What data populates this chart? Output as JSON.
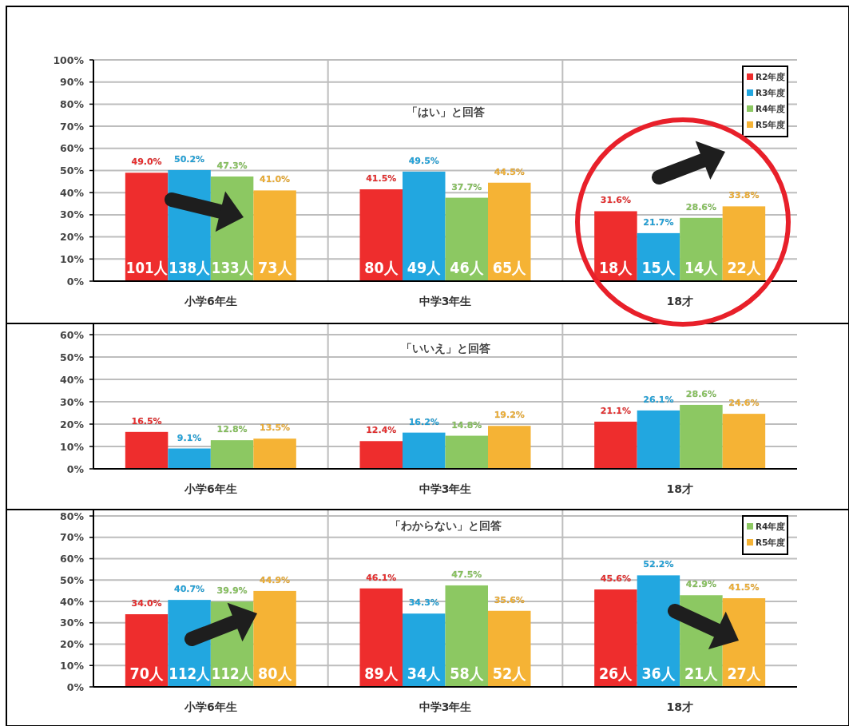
{
  "chart_data": [
    {
      "type": "bar",
      "title": "「はい」と回答",
      "categories": [
        "小学6年生",
        "中学3年生",
        "18才"
      ],
      "ylim": [
        0,
        100
      ],
      "yticks": [
        {
          "value": 0,
          "label": "0%"
        },
        {
          "value": 10,
          "label": "10%"
        },
        {
          "value": 20,
          "label": "20%"
        },
        {
          "value": 30,
          "label": "30%"
        },
        {
          "value": 40,
          "label": "40%"
        },
        {
          "value": 50,
          "label": "50%"
        },
        {
          "value": 60,
          "label": "60%"
        },
        {
          "value": 70,
          "label": "70%"
        },
        {
          "value": 80,
          "label": "80%"
        },
        {
          "value": 90,
          "label": "90%"
        },
        {
          "value": 100,
          "label": "100%"
        }
      ],
      "grid": true,
      "legend": "top right",
      "annotations": [
        "101人",
        "80人",
        "18人",
        "138人",
        "49人",
        "15人",
        "133人",
        "46人",
        "14人",
        "73人",
        "65人",
        "22人"
      ],
      "series": [
        {
          "name": "R2年度",
          "color": "#ee2d2d",
          "values": [
            49.0,
            41.5,
            31.6
          ],
          "value_labels": [
            "49.0%",
            "41.5%",
            "31.6%"
          ]
        },
        {
          "name": "R3年度",
          "color": "#22a7e0",
          "values": [
            50.2,
            49.5,
            21.7
          ],
          "value_labels": [
            "50.2%",
            "49.5%",
            "21.7%"
          ]
        },
        {
          "name": "R4年度",
          "color": "#8cc862",
          "values": [
            47.3,
            37.7,
            28.6
          ],
          "value_labels": [
            "47.3%",
            "37.7%",
            "28.6%"
          ]
        },
        {
          "name": "R5年度",
          "color": "#f5b335",
          "values": [
            41.0,
            44.5,
            33.8
          ],
          "value_labels": [
            "41.0%",
            "44.5%",
            "33.8%"
          ]
        }
      ]
    },
    {
      "type": "bar",
      "title": "「いいえ」と回答",
      "categories": [
        "小学6年生",
        "中学3年生",
        "18才"
      ],
      "ylim": [
        0,
        65
      ],
      "yticks": [
        {
          "value": 0,
          "label": "0%"
        },
        {
          "value": 10,
          "label": "10%"
        },
        {
          "value": 20,
          "label": "20%"
        },
        {
          "value": 30,
          "label": "30%"
        },
        {
          "value": 40,
          "label": "40%"
        },
        {
          "value": 50,
          "label": "50%"
        },
        {
          "value": 60,
          "label": "60%"
        }
      ],
      "grid": true,
      "series": [
        {
          "color": "#ee2d2d",
          "values": [
            16.5,
            12.4,
            21.1
          ],
          "value_labels": [
            "16.5%",
            "12.4%",
            "21.1%"
          ]
        },
        {
          "color": "#22a7e0",
          "values": [
            9.1,
            16.2,
            26.1
          ],
          "value_labels": [
            "9.1%",
            "16.2%",
            "26.1%"
          ]
        },
        {
          "color": "#8cc862",
          "values": [
            12.8,
            14.8,
            28.6
          ],
          "value_labels": [
            "12.8%",
            "14.8%",
            "28.6%"
          ]
        },
        {
          "color": "#f5b335",
          "values": [
            13.5,
            19.2,
            24.6
          ],
          "value_labels": [
            "13.5%",
            "19.2%",
            "24.6%"
          ]
        }
      ]
    },
    {
      "type": "bar",
      "title": "「わからない」と回答",
      "categories": [
        "小学6年生",
        "中学3年生",
        "18才"
      ],
      "ylim": [
        0,
        83
      ],
      "yticks": [
        {
          "value": 0,
          "label": "0%"
        },
        {
          "value": 10,
          "label": "10%"
        },
        {
          "value": 20,
          "label": "20%"
        },
        {
          "value": 30,
          "label": "30%"
        },
        {
          "value": 40,
          "label": "40%"
        },
        {
          "value": 50,
          "label": "50%"
        },
        {
          "value": 60,
          "label": "60%"
        },
        {
          "value": 70,
          "label": "70%"
        },
        {
          "value": 80,
          "label": "80%"
        }
      ],
      "grid": true,
      "legend": "top right",
      "annotations": [
        "70人",
        "89人",
        "26人",
        "112人",
        "34人",
        "36人",
        "112人",
        "58人",
        "21人",
        "80人",
        "52人",
        "27人"
      ],
      "series": [
        {
          "color": "#ee2d2d",
          "values": [
            34.0,
            46.1,
            45.6
          ],
          "value_labels": [
            "34.0%",
            "46.1%",
            "45.6%"
          ]
        },
        {
          "color": "#22a7e0",
          "values": [
            40.7,
            34.3,
            52.2
          ],
          "value_labels": [
            "40.7%",
            "34.3%",
            "52.2%"
          ]
        },
        {
          "name": "R4年度",
          "color": "#8cc862",
          "values": [
            39.9,
            47.5,
            42.9
          ],
          "value_labels": [
            "39.9%",
            "47.5%",
            "42.9%"
          ]
        },
        {
          "name": "R5年度",
          "color": "#f5b335",
          "values": [
            44.9,
            35.6,
            41.5
          ],
          "value_labels": [
            "44.9%",
            "35.6%",
            "41.5%"
          ]
        }
      ]
    }
  ]
}
